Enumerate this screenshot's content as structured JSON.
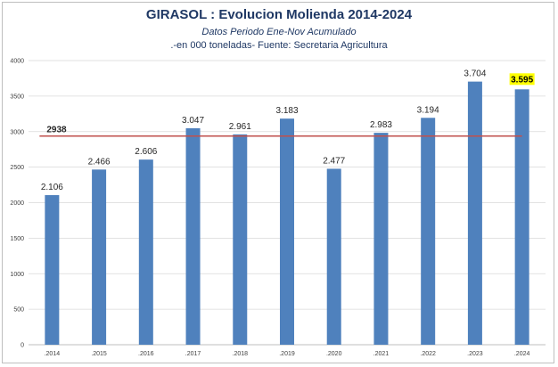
{
  "chart_data": {
    "type": "bar",
    "title": "GIRASOL : Evolucion  Molienda 2014-2024",
    "subtitle": "Datos Periodo  Ene-Nov Acumulado",
    "note": ".-en 000 toneladas- Fuente: Secretaria Agricultura",
    "categories": [
      ".2014",
      ".2015",
      ".2016",
      ".2017",
      ".2018",
      ".2019",
      ".2020",
      ".2021",
      ".2022",
      ".2023",
      ".2024"
    ],
    "values": [
      2106,
      2466,
      2606,
      3047,
      2961,
      3183,
      2477,
      2983,
      3194,
      3704,
      3595
    ],
    "value_labels": [
      "2.106",
      "2.466",
      "2.606",
      "3.047",
      "2.961",
      "3.183",
      "2.477",
      "2.983",
      "3.194",
      "3.704",
      "3.595"
    ],
    "highlight_index": 10,
    "reference_line": {
      "value": 2938,
      "label": "2938"
    },
    "ylim": [
      0,
      4000
    ],
    "yticks": [
      0,
      500,
      1000,
      1500,
      2000,
      2500,
      3000,
      3500,
      4000
    ],
    "xlabel": "",
    "ylabel": "",
    "grid": true,
    "colors": {
      "bar": "#4f81bd",
      "reference": "#c0504d",
      "highlight": "#ffff00",
      "grid": "#d9d9d9"
    }
  }
}
